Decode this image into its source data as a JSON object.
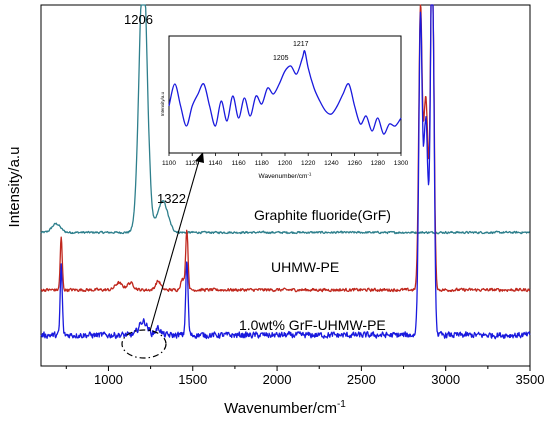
{
  "chart_data": {
    "type": "line",
    "xlabel": "Wavenumber/cm",
    "xlabel_sup": "-1",
    "ylabel": "Intensity/a.u",
    "xlim": [
      600,
      3500
    ],
    "xticks": [
      1000,
      1500,
      2000,
      2500,
      3000,
      3500
    ],
    "x_tick_labels": [
      "1000",
      "1500",
      "2000",
      "2500",
      "3000",
      "3500"
    ],
    "y_ticks_shown": false,
    "series": [
      {
        "name": "Graphite fluoride(GrF)",
        "color": "#2E7F8C",
        "baseline": 0.355,
        "noise": 0.004,
        "peaks": [
          [
            690,
            0.025,
            25
          ],
          [
            1206,
            0.78,
            24
          ],
          [
            1322,
            0.09,
            30
          ]
        ]
      },
      {
        "name": "UHMW-PE",
        "color": "#C0281E",
        "baseline": 0.19,
        "noise": 0.006,
        "peaks": [
          [
            720,
            0.15,
            6
          ],
          [
            1060,
            0.02,
            20
          ],
          [
            1130,
            0.02,
            20
          ],
          [
            1295,
            0.025,
            15
          ],
          [
            1440,
            0.03,
            12
          ],
          [
            1465,
            0.17,
            7
          ],
          [
            2850,
            0.78,
            10
          ],
          [
            2882,
            0.55,
            14
          ],
          [
            2920,
            1.0,
            10
          ]
        ]
      },
      {
        "name": "1.0wt% GrF-UHMW-PE",
        "color": "#1A1ADD",
        "baseline": 0.06,
        "noise": 0.012,
        "peaks": [
          [
            720,
            0.2,
            6
          ],
          [
            1206,
            0.04,
            25
          ],
          [
            1295,
            0.02,
            15
          ],
          [
            1465,
            0.21,
            7
          ],
          [
            2850,
            0.88,
            10
          ],
          [
            2882,
            0.62,
            14
          ],
          [
            2920,
            1.15,
            10
          ]
        ]
      }
    ],
    "annotations": [
      "1206",
      "1322"
    ],
    "inset": {
      "xlabel": "Wavenumber/cm",
      "xlabel_sup": "-1",
      "ylabel": "Intensity/a.u",
      "xlim": [
        1100,
        1300
      ],
      "xticks": [
        1100,
        1120,
        1140,
        1160,
        1180,
        1200,
        1220,
        1240,
        1260,
        1280,
        1300
      ],
      "x_tick_labels": [
        "1100",
        "1120",
        "1140",
        "1160",
        "1180",
        "1200",
        "1220",
        "1240",
        "1260",
        "1280",
        "1300"
      ],
      "annotations": [
        "1205",
        "1217"
      ],
      "color": "#1A1ADD",
      "x": [
        1100,
        1105,
        1110,
        1115,
        1120,
        1125,
        1130,
        1135,
        1140,
        1145,
        1150,
        1155,
        1160,
        1165,
        1170,
        1175,
        1180,
        1185,
        1190,
        1195,
        1200,
        1205,
        1210,
        1215,
        1217,
        1220,
        1225,
        1230,
        1235,
        1240,
        1245,
        1250,
        1255,
        1260,
        1265,
        1270,
        1275,
        1280,
        1285,
        1290,
        1295,
        1300
      ],
      "y": [
        0.4,
        0.62,
        0.4,
        0.2,
        0.4,
        0.52,
        0.62,
        0.4,
        0.2,
        0.45,
        0.25,
        0.5,
        0.28,
        0.48,
        0.3,
        0.5,
        0.42,
        0.58,
        0.52,
        0.62,
        0.75,
        0.8,
        0.72,
        0.88,
        0.95,
        0.78,
        0.58,
        0.45,
        0.35,
        0.32,
        0.4,
        0.52,
        0.62,
        0.4,
        0.22,
        0.3,
        0.15,
        0.28,
        0.12,
        0.22,
        0.2,
        0.28
      ]
    }
  }
}
